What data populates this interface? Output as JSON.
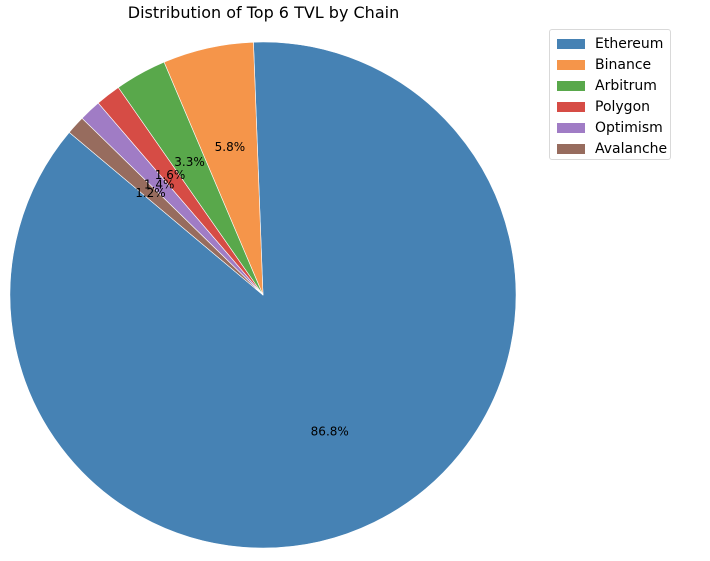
{
  "chart_data": {
    "type": "pie",
    "title": "Distribution of Top 6 TVL by Chain",
    "categories": [
      "Ethereum",
      "Binance",
      "Arbitrum",
      "Polygon",
      "Optimism",
      "Avalanche"
    ],
    "values": [
      86.8,
      5.8,
      3.3,
      1.6,
      1.4,
      1.2
    ],
    "value_labels": [
      "86.8%",
      "5.8%",
      "3.3%",
      "1.6%",
      "1.4%",
      "1.2%"
    ],
    "colors": [
      "#4682b4",
      "#f5954a",
      "#59a84b",
      "#d64c45",
      "#a07cc5",
      "#976c5e"
    ],
    "start_angle_deg": 140,
    "direction": "counterclockwise",
    "legend_position": "top-right"
  }
}
